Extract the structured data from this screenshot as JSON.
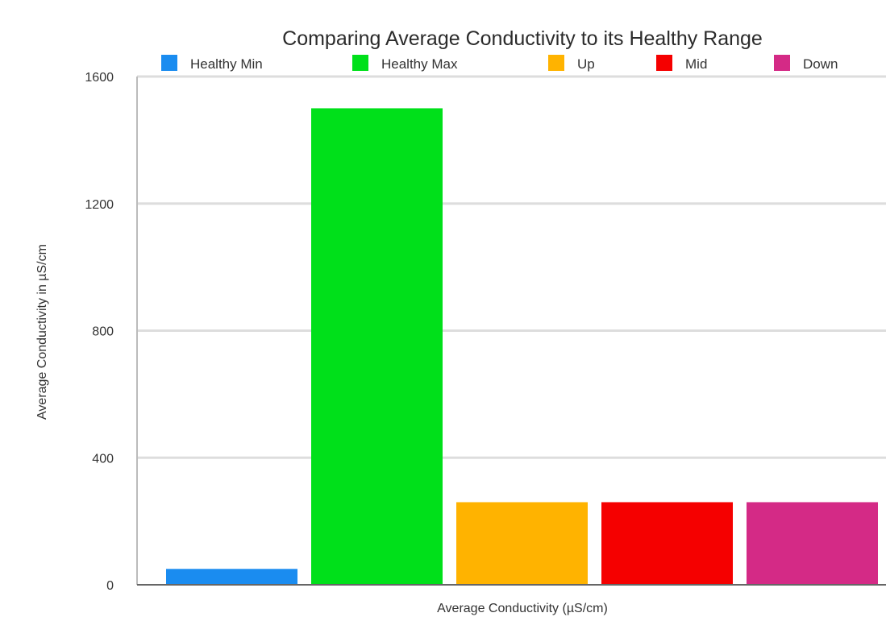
{
  "chart_data": {
    "type": "bar",
    "title": "Comparing Average Conductivity to its Healthy Range",
    "xlabel": "Average Conductivity (µS/cm)",
    "ylabel": "Average Conductivity in µS/cm",
    "ylim": [
      0,
      1600
    ],
    "yticks": [
      0,
      400,
      800,
      1200,
      1600
    ],
    "grid": true,
    "legend_position": "top",
    "categories": [
      ""
    ],
    "series": [
      {
        "name": "Healthy Min",
        "values": [
          50
        ],
        "color": "#1a8cf0"
      },
      {
        "name": "Healthy Max",
        "values": [
          1500
        ],
        "color": "#00e01a"
      },
      {
        "name": "Up",
        "values": [
          260
        ],
        "color": "#ffb300"
      },
      {
        "name": "Mid",
        "values": [
          260
        ],
        "color": "#f50000"
      },
      {
        "name": "Down",
        "values": [
          260
        ],
        "color": "#d42a86"
      }
    ]
  },
  "colors": {
    "grid": "#dddddd",
    "axis": "#666666"
  }
}
